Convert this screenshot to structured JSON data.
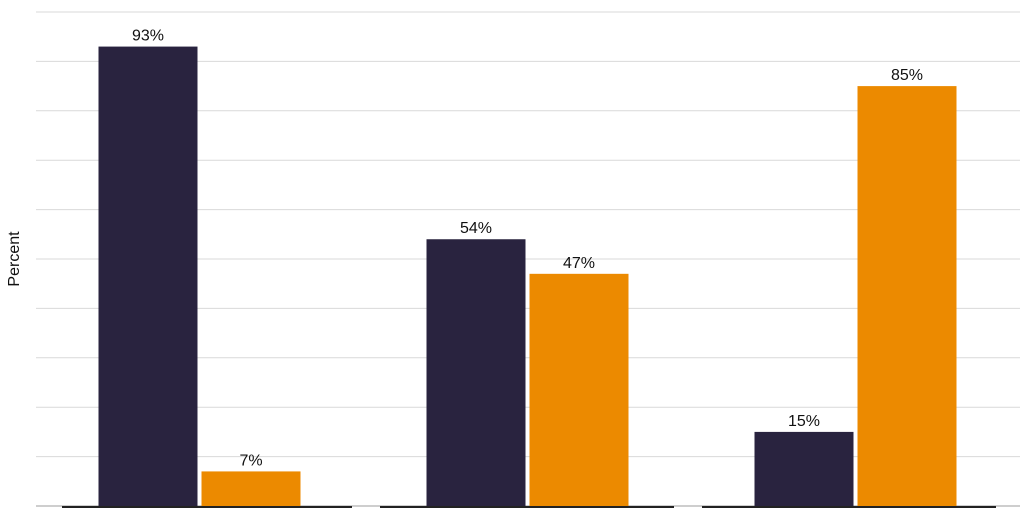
{
  "chart_data": {
    "type": "bar",
    "title": "",
    "xlabel": "",
    "ylabel": "Percent",
    "ylim": [
      0,
      100
    ],
    "grid": true,
    "categories": [
      "",
      "",
      ""
    ],
    "series": [
      {
        "values": [
          93,
          54,
          15
        ],
        "labels": [
          "93%",
          "54%",
          "15%"
        ],
        "color": "#29233f"
      },
      {
        "values": [
          7,
          47,
          85
        ],
        "labels": [
          "7%",
          "47%",
          "85%"
        ],
        "color": "#ec8a00"
      }
    ],
    "colors": {
      "grid": "#d9d9d9",
      "axis": "#222222",
      "text": "#111111",
      "background": "#ffffff"
    }
  }
}
